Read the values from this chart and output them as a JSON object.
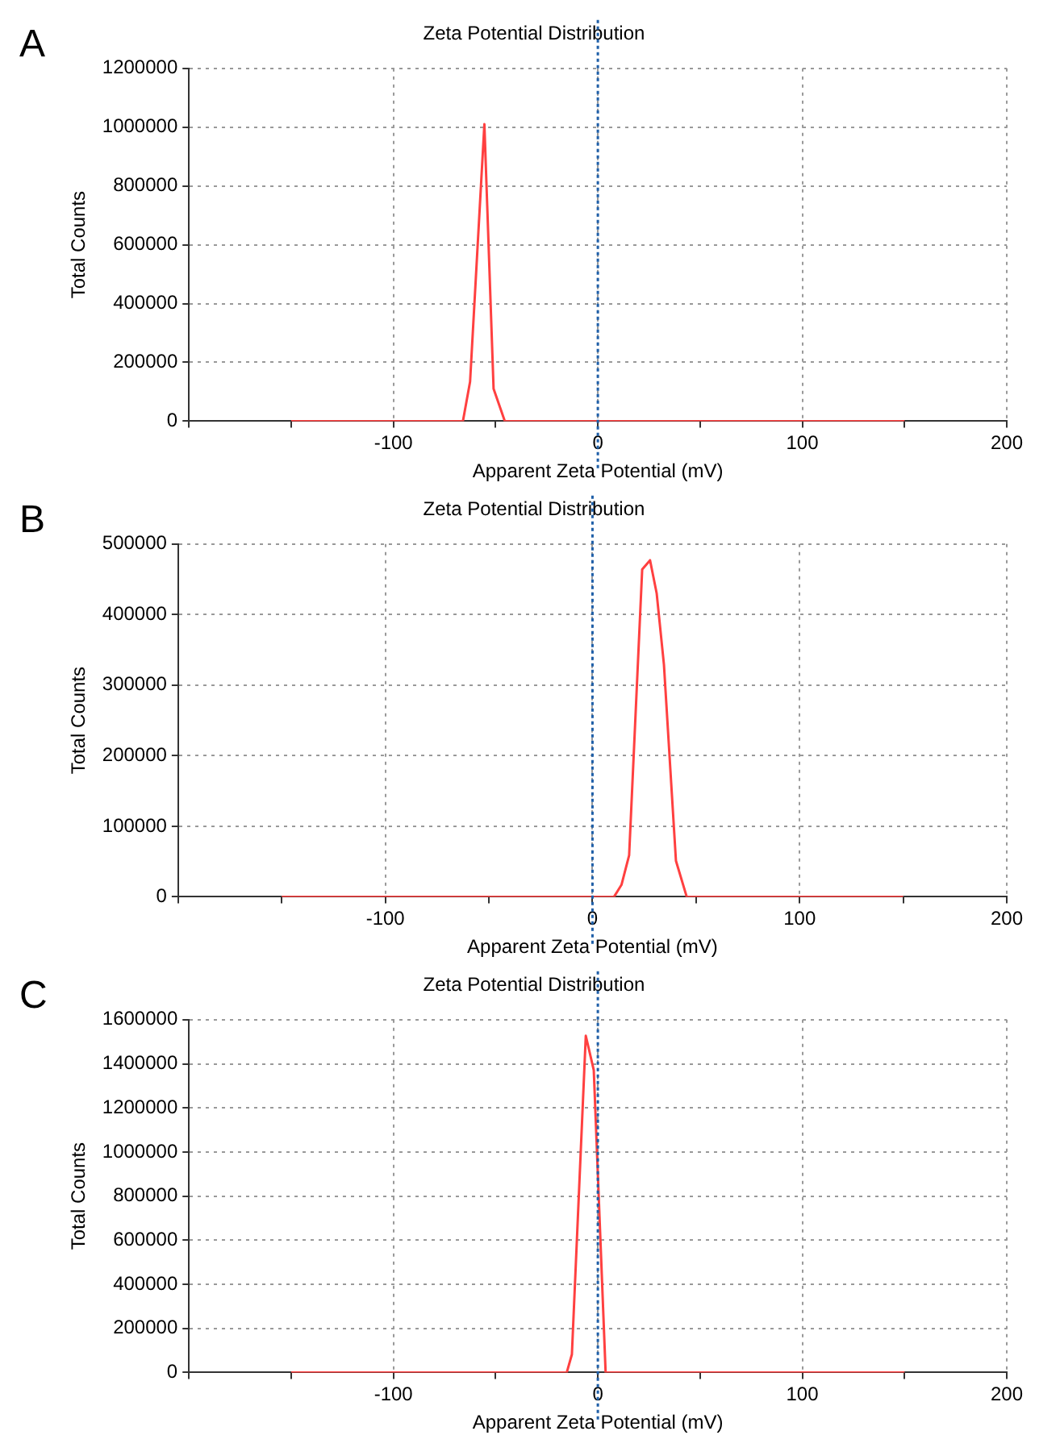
{
  "chart_data": [
    {
      "type": "line",
      "title": "Zeta Potential Distribution",
      "xlabel": "Apparent Zeta Potential (mV)",
      "ylabel": "Total Counts",
      "annotations": [
        "A"
      ],
      "grid": true,
      "legend": false,
      "marker": "none",
      "line_style": "solid",
      "xlim": [
        -200,
        200
      ],
      "xticks": [
        {
          "value": -200,
          "label": null
        },
        {
          "value": -150,
          "label": null
        },
        -100,
        {
          "value": -50,
          "label": null
        },
        0,
        {
          "value": 50,
          "label": null
        },
        100,
        {
          "value": 150,
          "label": null
        },
        200
      ],
      "ylim": [
        0,
        1200000
      ],
      "yticks": [
        0,
        200000,
        400000,
        600000,
        800000,
        1000000,
        1200000
      ],
      "ref_lines": [
        {
          "axis": "x",
          "value": 0,
          "color": "#1f5fa8",
          "line_style": "dotted"
        }
      ],
      "series": [
        {
          "color": "#ff4040",
          "x": [
            -150,
            -66,
            -62.5,
            -55.5,
            -51,
            -45.5,
            150
          ],
          "values": [
            0,
            0,
            134000,
            1010000,
            110000,
            0,
            0
          ]
        }
      ]
    },
    {
      "type": "line",
      "title": "Zeta Potential Distribution",
      "xlabel": "Apparent Zeta Potential (mV)",
      "ylabel": "Total Counts",
      "annotations": [
        "B"
      ],
      "grid": true,
      "legend": false,
      "marker": "none",
      "line_style": "solid",
      "xlim": [
        -200,
        200
      ],
      "xticks": [
        {
          "value": -200,
          "label": null
        },
        {
          "value": -150,
          "label": null
        },
        -100,
        {
          "value": -50,
          "label": null
        },
        0,
        {
          "value": 50,
          "label": null
        },
        100,
        {
          "value": 150,
          "label": null
        },
        200
      ],
      "ylim": [
        0,
        500000
      ],
      "yticks": [
        0,
        100000,
        200000,
        300000,
        400000,
        500000
      ],
      "ref_lines": [
        {
          "axis": "x",
          "value": 0,
          "color": "#1f5fa8",
          "line_style": "dotted"
        }
      ],
      "series": [
        {
          "color": "#ff4040",
          "x": [
            -150,
            10.4,
            14,
            17.7,
            24,
            27.8,
            31,
            34.5,
            40.3,
            45.5,
            150
          ],
          "values": [
            0,
            0,
            17000,
            59000,
            464000,
            477000,
            430000,
            329000,
            51000,
            0,
            0
          ]
        }
      ]
    },
    {
      "type": "line",
      "title": "Zeta Potential Distribution",
      "xlabel": "Apparent Zeta Potential (mV)",
      "ylabel": "Total Counts",
      "annotations": [
        "C"
      ],
      "grid": true,
      "legend": false,
      "marker": "none",
      "line_style": "solid",
      "xlim": [
        -200,
        200
      ],
      "xticks": [
        {
          "value": -200,
          "label": null
        },
        {
          "value": -150,
          "label": null
        },
        -100,
        {
          "value": -50,
          "label": null
        },
        0,
        {
          "value": 50,
          "label": null
        },
        100,
        {
          "value": 150,
          "label": null
        },
        200
      ],
      "ylim": [
        0,
        1600000
      ],
      "yticks": [
        0,
        200000,
        400000,
        600000,
        800000,
        1000000,
        1200000,
        1400000,
        1600000
      ],
      "ref_lines": [
        {
          "axis": "x",
          "value": 0,
          "color": "#1f5fa8",
          "line_style": "dotted"
        }
      ],
      "series": [
        {
          "color": "#ff4040",
          "x": [
            -150,
            -15.2,
            -12.7,
            -5.9,
            -2,
            3.8,
            150
          ],
          "values": [
            0,
            0,
            82000,
            1527000,
            1371000,
            0,
            0
          ]
        }
      ]
    }
  ]
}
